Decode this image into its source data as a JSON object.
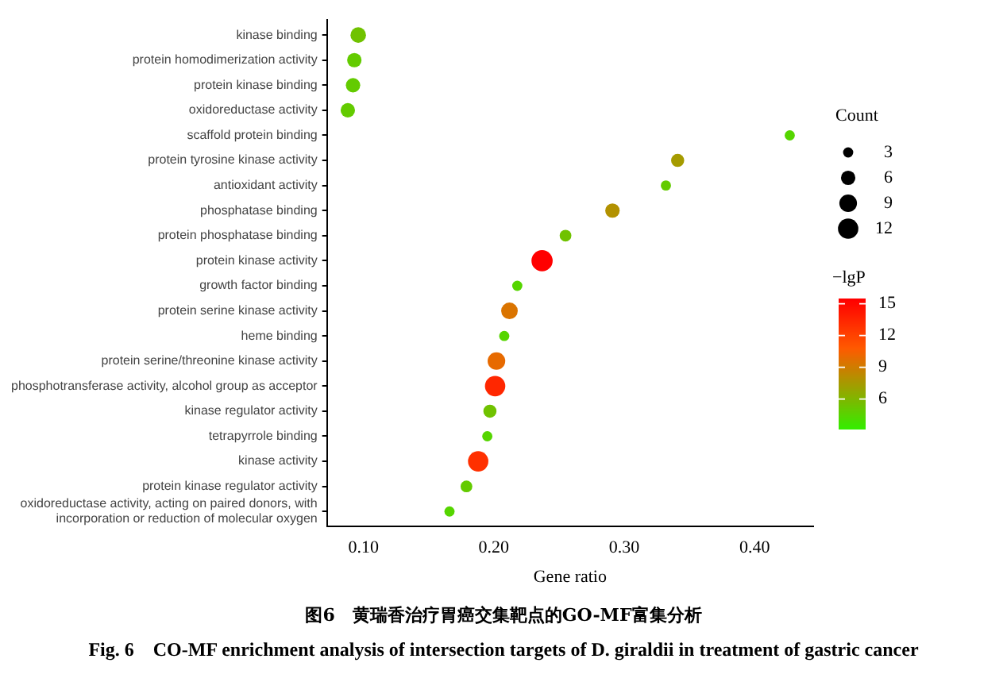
{
  "chart_data": {
    "type": "bubble",
    "title": "图6　黄瑞香治疗胃癌交集靶点的GO-MF富集分析",
    "subtitle": "Fig. 6　CO-MF enrichment analysis of intersection targets of D. giraldii in treatment of gastric cancer",
    "xlabel": "Gene ratio",
    "legend_title": "Count",
    "clabel": "−lgP",
    "categories": [
      "kinase binding",
      "protein homodimerization activity",
      "protein kinase binding",
      "oxidoreductase activity",
      "scaffold protein binding",
      "protein tyrosine kinase activity",
      "antioxidant activity",
      "phosphatase binding",
      "protein phosphatase binding",
      "protein kinase activity",
      "growth factor binding",
      "protein serine kinase activity",
      "heme binding",
      "protein serine/threonine kinase activity",
      "phosphotransferase activity, alcohol group as acceptor",
      "kinase regulator activity",
      "tetrapyrrole binding",
      "kinase activity",
      "protein kinase regulator activity",
      "oxidoreductase activity, acting on paired donors, with incorporation or reduction of molecular oxygen"
    ],
    "orientation": "horizontal",
    "values": [
      0.096,
      0.093,
      0.092,
      0.088,
      0.427,
      0.341,
      0.332,
      0.291,
      0.255,
      0.237,
      0.218,
      0.212,
      0.208,
      0.202,
      0.201,
      0.197,
      0.195,
      0.188,
      0.179,
      0.166
    ],
    "sizes": [
      7,
      6,
      6,
      6,
      3,
      5,
      3,
      6,
      4,
      13,
      3,
      8,
      3,
      9,
      12,
      5,
      3,
      12,
      4,
      3
    ],
    "size_legend": [
      3,
      6,
      9,
      12
    ],
    "cvalues": [
      5.5,
      5,
      5,
      5,
      4.5,
      7.5,
      5,
      8,
      5.5,
      15.5,
      4.5,
      9.5,
      4.5,
      10,
      13.5,
      5.5,
      4.5,
      13,
      5,
      4.5
    ],
    "clim": [
      3.2,
      15.5
    ],
    "cticks": [
      6,
      9,
      12,
      15
    ],
    "xlim": [
      0.072,
      0.445
    ],
    "xticks": [
      {
        "value": 0.1,
        "label": "0.10"
      },
      {
        "value": 0.2,
        "label": "0.20"
      },
      {
        "value": 0.3,
        "label": "0.30"
      },
      {
        "value": 0.4,
        "label": "0.40"
      }
    ],
    "grid": false
  }
}
